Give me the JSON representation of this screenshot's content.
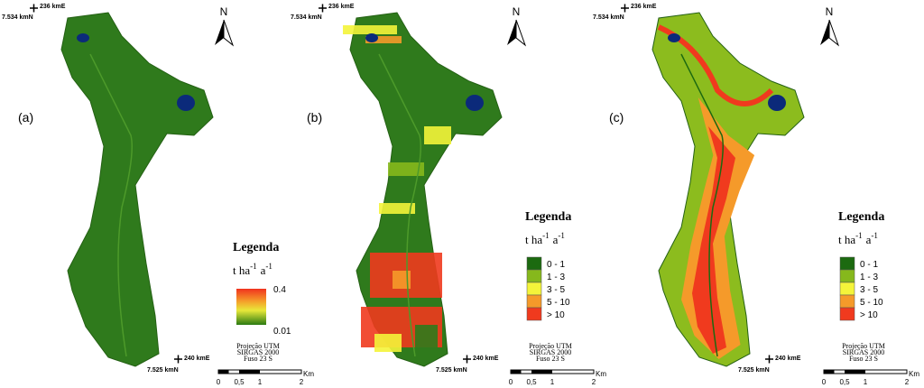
{
  "panels": [
    {
      "label": "(a)",
      "easting_top": "236 kmE",
      "northing_top": "7.534 kmN",
      "north": "N",
      "easting_bottom": "240 kmE",
      "northing_bottom": "7.525 kmN",
      "legend": {
        "title": "Legenda",
        "unit": [
          "t ha",
          "-1",
          "a",
          "-1"
        ],
        "max": "0.4",
        "min": "0.01"
      },
      "projection": [
        "Projeção UTM",
        "SIRGAS 2000",
        "Fuso 23 S"
      ],
      "scale": {
        "ticks": [
          "0",
          "0,5",
          "1",
          "2"
        ],
        "unit": "Km"
      }
    },
    {
      "label": "(b)",
      "easting_top": "236 kmE",
      "northing_top": "7.534 kmN",
      "north": "N",
      "easting_bottom": "240 kmE",
      "northing_bottom": "7.525 kmN",
      "legend": {
        "title": "Legenda",
        "unit": [
          "t ha",
          "-1",
          "a",
          "-1"
        ],
        "classes": [
          {
            "label": "0 - 1",
            "color": "#1c6a10"
          },
          {
            "label": "1 - 3",
            "color": "#86b81c"
          },
          {
            "label": "3 - 5",
            "color": "#f4f43a"
          },
          {
            "label": "5 - 10",
            "color": "#f59a2a"
          },
          {
            "label": "> 10",
            "color": "#f03a1e"
          }
        ]
      },
      "projection": [
        "Projeção UTM",
        "SIRGAS 2000",
        "Fuso 23 S"
      ],
      "scale": {
        "ticks": [
          "0",
          "0,5",
          "1",
          "2"
        ],
        "unit": "Km"
      }
    },
    {
      "label": "(c)",
      "easting_top": "236 kmE",
      "northing_top": "7.534 kmN",
      "north": "N",
      "easting_bottom": "240 kmE",
      "northing_bottom": "7.525 kmN",
      "legend": {
        "title": "Legenda",
        "unit": [
          "t ha",
          "-1",
          "a",
          "-1"
        ],
        "classes": [
          {
            "label": "0 - 1",
            "color": "#1c6a10"
          },
          {
            "label": "1 - 3",
            "color": "#86b81c"
          },
          {
            "label": "3 - 5",
            "color": "#f4f43a"
          },
          {
            "label": "5 - 10",
            "color": "#f59a2a"
          },
          {
            "label": "> 10",
            "color": "#f03a1e"
          }
        ]
      },
      "projection": [
        "Projeção UTM",
        "SIRGAS 2000",
        "Fuso 23 S"
      ],
      "scale": {
        "ticks": [
          "0",
          "0,5",
          "1",
          "2"
        ],
        "unit": "Km"
      }
    }
  ]
}
